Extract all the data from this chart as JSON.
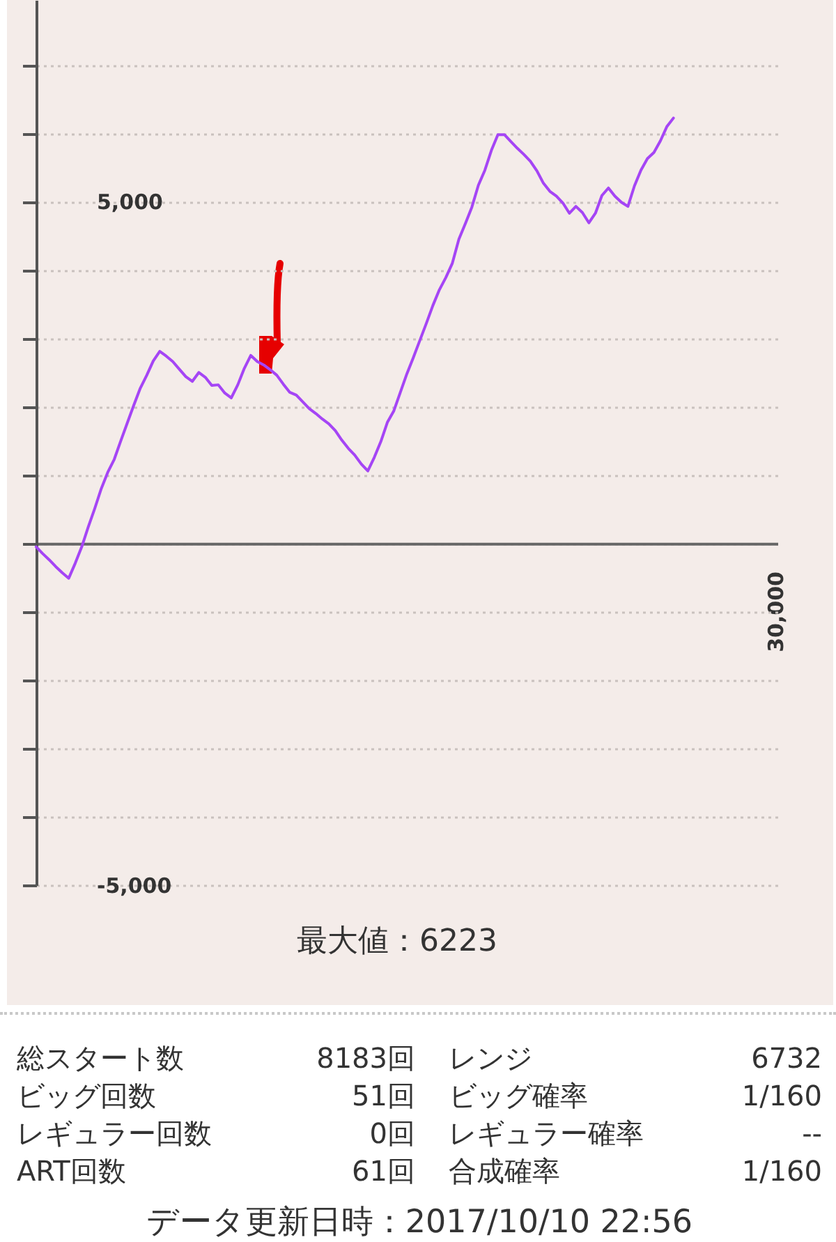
{
  "chart_data": [
    {
      "type": "line",
      "color": "#a545f5",
      "line_style": "solid",
      "grid": "y",
      "categories": [
        null,
        null,
        null,
        null,
        null,
        null,
        null,
        null,
        null,
        null,
        null,
        null,
        null,
        null,
        null,
        null,
        null,
        null,
        null,
        null,
        null,
        null,
        null,
        null,
        null,
        null,
        null,
        null,
        null,
        null,
        null,
        null,
        null,
        null,
        null,
        null,
        null,
        null,
        null,
        null,
        null,
        null,
        null,
        null,
        null,
        null,
        null,
        null,
        null,
        null,
        null,
        null,
        null,
        null,
        null,
        null,
        null,
        null,
        null,
        null,
        null,
        null,
        null,
        null,
        null,
        null,
        null,
        null,
        null,
        null,
        null,
        null,
        null,
        null,
        null,
        null,
        null,
        null,
        null,
        null,
        null,
        null,
        null,
        null,
        null,
        null,
        null,
        null,
        null,
        null,
        null,
        null,
        null,
        null,
        null,
        null,
        null,
        null,
        null,
        null,
        null,
        null,
        null,
        null,
        null,
        null,
        null,
        null,
        null,
        null,
        null,
        null,
        null,
        null,
        null
      ],
      "values": [
        -50,
        -150,
        -240,
        -340,
        -430,
        -510,
        -290,
        -50,
        240,
        510,
        800,
        1040,
        1230,
        1500,
        1760,
        2020,
        2270,
        2460,
        2670,
        2810,
        2740,
        2660,
        2550,
        2440,
        2370,
        2500,
        2430,
        2310,
        2320,
        2200,
        2130,
        2320,
        2560,
        2750,
        2660,
        2610,
        2540,
        2460,
        2330,
        2210,
        2170,
        2070,
        1970,
        1900,
        1820,
        1750,
        1650,
        1510,
        1390,
        1290,
        1160,
        1060,
        1260,
        1490,
        1770,
        1940,
        2210,
        2480,
        2720,
        2970,
        3220,
        3480,
        3710,
        3890,
        4100,
        4450,
        4680,
        4920,
        5240,
        5460,
        5750,
        5980,
        5980,
        5880,
        5780,
        5690,
        5590,
        5450,
        5270,
        5150,
        5080,
        4980,
        4830,
        4930,
        4840,
        4690,
        4830,
        5090,
        5200,
        5080,
        4990,
        4930,
        5230,
        5460,
        5630,
        5720,
        5890,
        6100,
        6223,
        null,
        null,
        null,
        null,
        null,
        null,
        null,
        null,
        null,
        null,
        null,
        null,
        null,
        null,
        null,
        null
      ],
      "ylim": [
        -5000,
        7950
      ],
      "yticks": [
        {
          "value": -5000,
          "label": "-5,000"
        },
        {
          "value": -4000,
          "label": null
        },
        {
          "value": -3000,
          "label": null
        },
        {
          "value": -2000,
          "label": null
        },
        {
          "value": -1000,
          "label": null
        },
        {
          "value": 0,
          "label": null
        },
        {
          "value": 1000,
          "label": null
        },
        {
          "value": 2000,
          "label": null
        },
        {
          "value": 3000,
          "label": null
        },
        {
          "value": 4000,
          "label": null
        },
        {
          "value": 5000,
          "label": "5,000"
        },
        {
          "value": 6000,
          "label": null
        },
        {
          "value": 7000,
          "label": null
        }
      ],
      "annotations": [
        "30,000",
        "最大値：6223"
      ]
    },
    {
      "type": "other",
      "annotations": [
        "総スタート数",
        "8183回",
        "レンジ",
        "6732",
        "ビッグ回数",
        "51回",
        "ビッグ確率",
        "1/160",
        "レギュラー回数",
        "0回",
        "レギュラー確率",
        "--",
        "ART回数",
        "61回",
        "合成確率",
        "1/160",
        "データ更新日時：2017/10/10 22:56"
      ]
    }
  ]
}
